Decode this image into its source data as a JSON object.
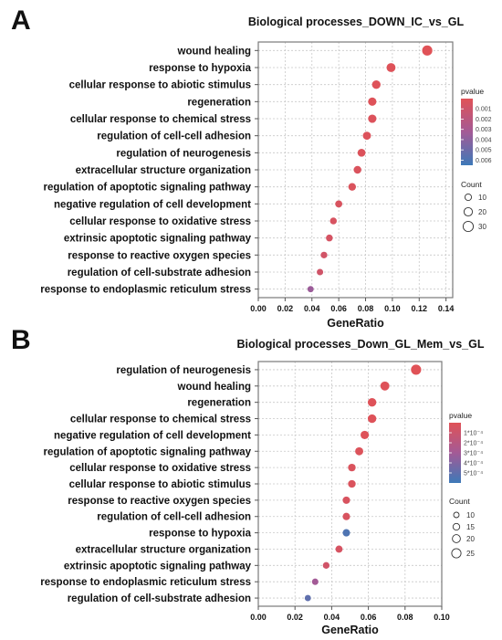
{
  "colors": {
    "high": "#e05257",
    "mid": "#a35a96",
    "low": "#3d79b8"
  },
  "chart_data": [
    {
      "panel_letter": "A",
      "type": "scatter",
      "title": "Biological processes_DOWN_IC_vs_GL",
      "xlabel": "GeneRatio",
      "xlim": [
        0.0,
        0.145
      ],
      "x_ticks": [
        "0.00",
        "0.02",
        "0.04",
        "0.06",
        "0.08",
        "0.10",
        "0.12",
        "0.14"
      ],
      "grid": true,
      "legend_placement": "right",
      "color_legend_title": "pvalue",
      "color_ticks": [
        "0.001",
        "0.002",
        "0.003",
        "0.004",
        "0.005",
        "0.006"
      ],
      "size_legend_title": "Count",
      "size_ticks": [
        "10",
        "20",
        "30"
      ],
      "points": [
        {
          "term": "wound healing",
          "x": 0.126,
          "pvalue": 0.0,
          "count": 28
        },
        {
          "term": "response to hypoxia",
          "x": 0.099,
          "pvalue": 0.0001,
          "count": 22
        },
        {
          "term": "cellular response to abiotic stimulus",
          "x": 0.088,
          "pvalue": 0.0001,
          "count": 20
        },
        {
          "term": "regeneration",
          "x": 0.085,
          "pvalue": 0.0001,
          "count": 19
        },
        {
          "term": "cellular response to chemical stress",
          "x": 0.085,
          "pvalue": 0.0002,
          "count": 19
        },
        {
          "term": "regulation of cell-cell adhesion",
          "x": 0.081,
          "pvalue": 0.0002,
          "count": 18
        },
        {
          "term": "regulation of neurogenesis",
          "x": 0.077,
          "pvalue": 0.0002,
          "count": 17
        },
        {
          "term": "extracellular structure organization",
          "x": 0.074,
          "pvalue": 0.0003,
          "count": 16
        },
        {
          "term": "regulation of apoptotic signaling pathway",
          "x": 0.07,
          "pvalue": 0.0003,
          "count": 16
        },
        {
          "term": "negative regulation of cell development",
          "x": 0.06,
          "pvalue": 0.0004,
          "count": 13
        },
        {
          "term": "cellular response to oxidative stress",
          "x": 0.056,
          "pvalue": 0.0005,
          "count": 12
        },
        {
          "term": "extrinsic apoptotic signaling pathway",
          "x": 0.053,
          "pvalue": 0.0006,
          "count": 12
        },
        {
          "term": "response to reactive oxygen species",
          "x": 0.049,
          "pvalue": 0.0008,
          "count": 11
        },
        {
          "term": "regulation of cell-substrate adhesion",
          "x": 0.046,
          "pvalue": 0.0009,
          "count": 10
        },
        {
          "term": "response to endoplasmic reticulum stress",
          "x": 0.039,
          "pvalue": 0.0035,
          "count": 9
        }
      ]
    },
    {
      "panel_letter": "B",
      "type": "scatter",
      "title": "Biological processes_Down_GL_Mem_vs_GL",
      "xlabel": "GeneRatio",
      "xlim": [
        0.0,
        0.1
      ],
      "x_ticks": [
        "0.00",
        "0.02",
        "0.04",
        "0.06",
        "0.08",
        "0.10"
      ],
      "grid": true,
      "legend_placement": "right",
      "color_legend_title": "pvalue",
      "color_ticks": [
        "1*10⁻⁴",
        "2*10⁻⁴",
        "3*10⁻⁴",
        "4*10⁻⁴",
        "5*10⁻⁴"
      ],
      "size_legend_title": "Count",
      "size_ticks": [
        "10",
        "15",
        "20",
        "25"
      ],
      "points": [
        {
          "term": "regulation of neurogenesis",
          "x": 0.086,
          "pvalue": 0.0,
          "count": 26
        },
        {
          "term": "wound healing",
          "x": 0.069,
          "pvalue": 1e-05,
          "count": 21
        },
        {
          "term": "regeneration",
          "x": 0.062,
          "pvalue": 1e-05,
          "count": 19
        },
        {
          "term": "cellular response to chemical stress",
          "x": 0.062,
          "pvalue": 1e-05,
          "count": 19
        },
        {
          "term": "negative regulation of cell development",
          "x": 0.058,
          "pvalue": 1e-05,
          "count": 18
        },
        {
          "term": "regulation of apoptotic signaling pathway",
          "x": 0.055,
          "pvalue": 2e-05,
          "count": 17
        },
        {
          "term": "cellular response to oxidative stress",
          "x": 0.051,
          "pvalue": 3e-05,
          "count": 15
        },
        {
          "term": "cellular response to abiotic stimulus",
          "x": 0.051,
          "pvalue": 3e-05,
          "count": 15
        },
        {
          "term": "response to reactive oxygen species",
          "x": 0.048,
          "pvalue": 4e-05,
          "count": 14
        },
        {
          "term": "regulation of cell-cell adhesion",
          "x": 0.048,
          "pvalue": 4e-05,
          "count": 14
        },
        {
          "term": "response to hypoxia",
          "x": 0.048,
          "pvalue": 0.00055,
          "count": 14
        },
        {
          "term": "extracellular structure organization",
          "x": 0.044,
          "pvalue": 5e-05,
          "count": 13
        },
        {
          "term": "extrinsic apoptotic signaling pathway",
          "x": 0.037,
          "pvalue": 8e-05,
          "count": 11
        },
        {
          "term": "response to endoplasmic reticulum stress",
          "x": 0.031,
          "pvalue": 0.0003,
          "count": 10
        },
        {
          "term": "regulation of cell-substrate adhesion",
          "x": 0.027,
          "pvalue": 0.0005,
          "count": 9
        }
      ]
    }
  ]
}
